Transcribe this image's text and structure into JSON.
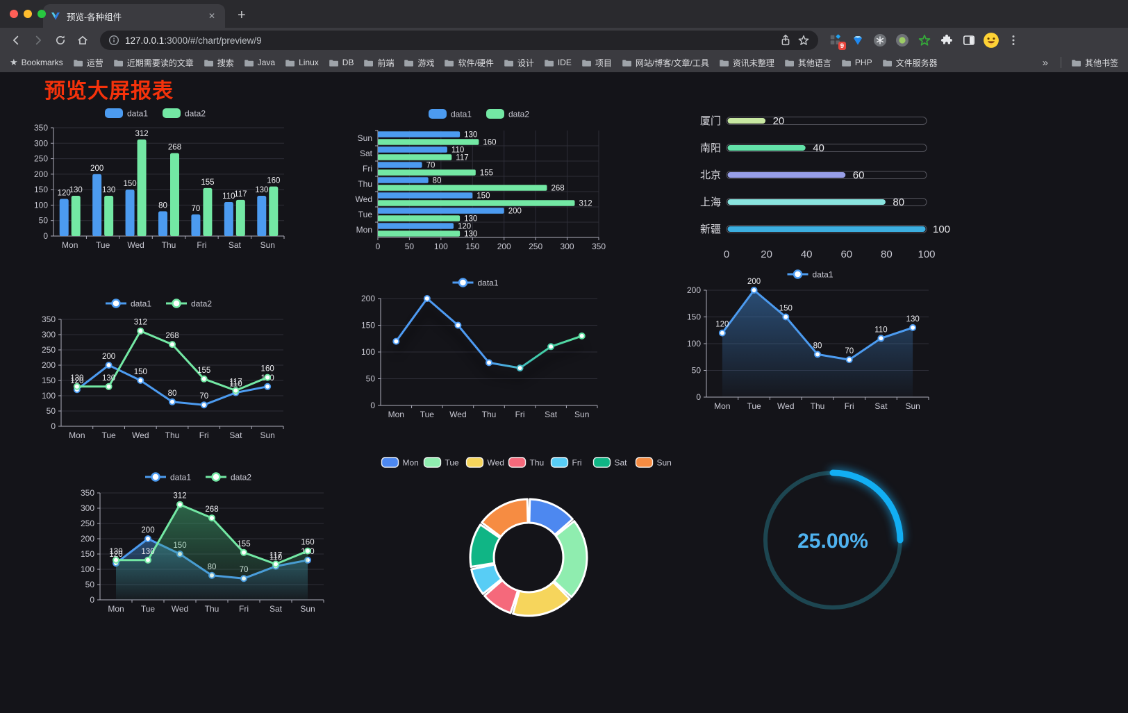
{
  "browser": {
    "traffic_lights": [
      "#FF5F57",
      "#FEBC2E",
      "#28C840"
    ],
    "tab": {
      "title": "预览-各种组件",
      "close_icon": "✕"
    },
    "new_tab_icon": "+",
    "omnibox": {
      "host": "127.0.0.1",
      "path": ":3000/#/chart/preview/9"
    },
    "extensions_badge": "9",
    "bookmarks": {
      "star_icon": "★",
      "label": "Bookmarks",
      "folders": [
        "运营",
        "近期需要读的文章",
        "搜索",
        "Java",
        "Linux",
        "DB",
        "前端",
        "游戏",
        "软件/硬件",
        "设计",
        "IDE",
        "项目",
        "网站/博客/文章/工具",
        "资讯未整理",
        "其他语言",
        "PHP",
        "文件服务器"
      ],
      "overflow_icon": "»",
      "other_label": "其他书签"
    }
  },
  "page": {
    "title": "预览大屏报表",
    "title_color": "#F5320B",
    "background": "#141419"
  },
  "chart_data": [
    {
      "id": "bar-grouped",
      "type": "bar",
      "categories": [
        "Mon",
        "Tue",
        "Wed",
        "Thu",
        "Fri",
        "Sat",
        "Sun"
      ],
      "series": [
        {
          "name": "data1",
          "color": "#4C9BF0",
          "values": [
            120,
            200,
            150,
            80,
            70,
            110,
            130
          ]
        },
        {
          "name": "data2",
          "color": "#73E8A4",
          "values": [
            130,
            130,
            312,
            268,
            155,
            117,
            160
          ]
        }
      ],
      "ylim": [
        0,
        350
      ],
      "ytick_step": 50,
      "grid": true,
      "legend_position": "top",
      "data_labels": true
    },
    {
      "id": "hbar-grouped",
      "type": "bar",
      "orientation": "horizontal",
      "categories": [
        "Mon",
        "Tue",
        "Wed",
        "Thu",
        "Fri",
        "Sat",
        "Sun"
      ],
      "categories_displayed_top_to_bottom": [
        "Sun",
        "Sat",
        "Fri",
        "Thu",
        "Wed",
        "Tue",
        "Mon"
      ],
      "series": [
        {
          "name": "data1",
          "color": "#4C9BF0",
          "values": [
            120,
            200,
            150,
            80,
            70,
            110,
            130
          ]
        },
        {
          "name": "data2",
          "color": "#73E8A4",
          "values": [
            130,
            130,
            312,
            268,
            155,
            117,
            160
          ]
        }
      ],
      "xlim": [
        0,
        350
      ],
      "xtick_step": 50,
      "grid": true,
      "legend_position": "top",
      "data_labels": true
    },
    {
      "id": "progress-list",
      "type": "bar",
      "subtype": "progress-pills",
      "items": [
        {
          "label": "厦门",
          "value": 20,
          "color": "#C8E8A2"
        },
        {
          "label": "南阳",
          "value": 40,
          "color": "#63E2A9"
        },
        {
          "label": "北京",
          "value": 60,
          "color": "#989FE8"
        },
        {
          "label": "上海",
          "value": 80,
          "color": "#8AE4DF"
        },
        {
          "label": "新疆",
          "value": 100,
          "color": "#3CAEDF"
        }
      ],
      "xlim": [
        0,
        100
      ],
      "xticks": [
        0,
        20,
        40,
        60,
        80,
        100
      ]
    },
    {
      "id": "line-grouped",
      "type": "line",
      "categories": [
        "Mon",
        "Tue",
        "Wed",
        "Thu",
        "Fri",
        "Sat",
        "Sun"
      ],
      "series": [
        {
          "name": "data1",
          "color": "#4C9BF0",
          "values": [
            120,
            200,
            150,
            80,
            70,
            110,
            130
          ]
        },
        {
          "name": "data2",
          "color": "#73E8A4",
          "values": [
            130,
            130,
            312,
            268,
            155,
            117,
            160
          ]
        }
      ],
      "ylim": [
        0,
        350
      ],
      "ytick_step": 50,
      "grid": true,
      "legend_position": "top",
      "data_labels": true
    },
    {
      "id": "line-gradient",
      "type": "line",
      "shadow": true,
      "categories": [
        "Mon",
        "Tue",
        "Wed",
        "Thu",
        "Fri",
        "Sat",
        "Sun"
      ],
      "series": [
        {
          "name": "data1",
          "color": "#4E9BF3",
          "line_gradient": [
            "#4E9BF3",
            "#3FC9A8",
            "#66E89E"
          ],
          "values": [
            120,
            200,
            150,
            80,
            70,
            110,
            130
          ]
        }
      ],
      "ylim": [
        0,
        200
      ],
      "ytick_step": 50,
      "grid": true,
      "legend_position": "top",
      "data_labels": false
    },
    {
      "id": "area-single",
      "type": "area",
      "categories": [
        "Mon",
        "Tue",
        "Wed",
        "Thu",
        "Fri",
        "Sat",
        "Sun"
      ],
      "series": [
        {
          "name": "data1",
          "color": "#4C9BF0",
          "area_fill": "#3C7CC0",
          "values": [
            120,
            200,
            150,
            80,
            70,
            110,
            130
          ]
        }
      ],
      "ylim": [
        0,
        200
      ],
      "ytick_step": 50,
      "grid": true,
      "legend_position": "top",
      "data_labels": true
    },
    {
      "id": "area-grouped",
      "type": "area",
      "categories": [
        "Mon",
        "Tue",
        "Wed",
        "Thu",
        "Fri",
        "Sat",
        "Sun"
      ],
      "series": [
        {
          "name": "data1",
          "color": "#4C9BF0",
          "area_fill": "#3C7CC0",
          "values": [
            120,
            200,
            150,
            80,
            70,
            110,
            130
          ]
        },
        {
          "name": "data2",
          "color": "#73E8A4",
          "area_fill": "#3FA56E",
          "values": [
            130,
            130,
            312,
            268,
            155,
            117,
            160
          ]
        }
      ],
      "ylim": [
        0,
        350
      ],
      "ytick_step": 50,
      "grid": true,
      "legend_position": "top",
      "data_labels": true
    },
    {
      "id": "donut",
      "type": "pie",
      "inner_radius_ratio": 0.6,
      "border_color": "#FFFFFF",
      "labels": [
        "Mon",
        "Tue",
        "Wed",
        "Thu",
        "Fri",
        "Sat",
        "Sun"
      ],
      "values": [
        120,
        200,
        150,
        80,
        70,
        110,
        130
      ],
      "colors": [
        "#4D88F0",
        "#8FEDAF",
        "#F6D55C",
        "#F5697B",
        "#58CDF5",
        "#10B585",
        "#F68C42"
      ],
      "legend_position": "top"
    },
    {
      "id": "gauge",
      "type": "gauge",
      "value_percent": 25,
      "label": "25.00%",
      "arc_color": "#12AEF3",
      "track_color": "#1D4651",
      "text_color": "#4FB3F0"
    }
  ]
}
